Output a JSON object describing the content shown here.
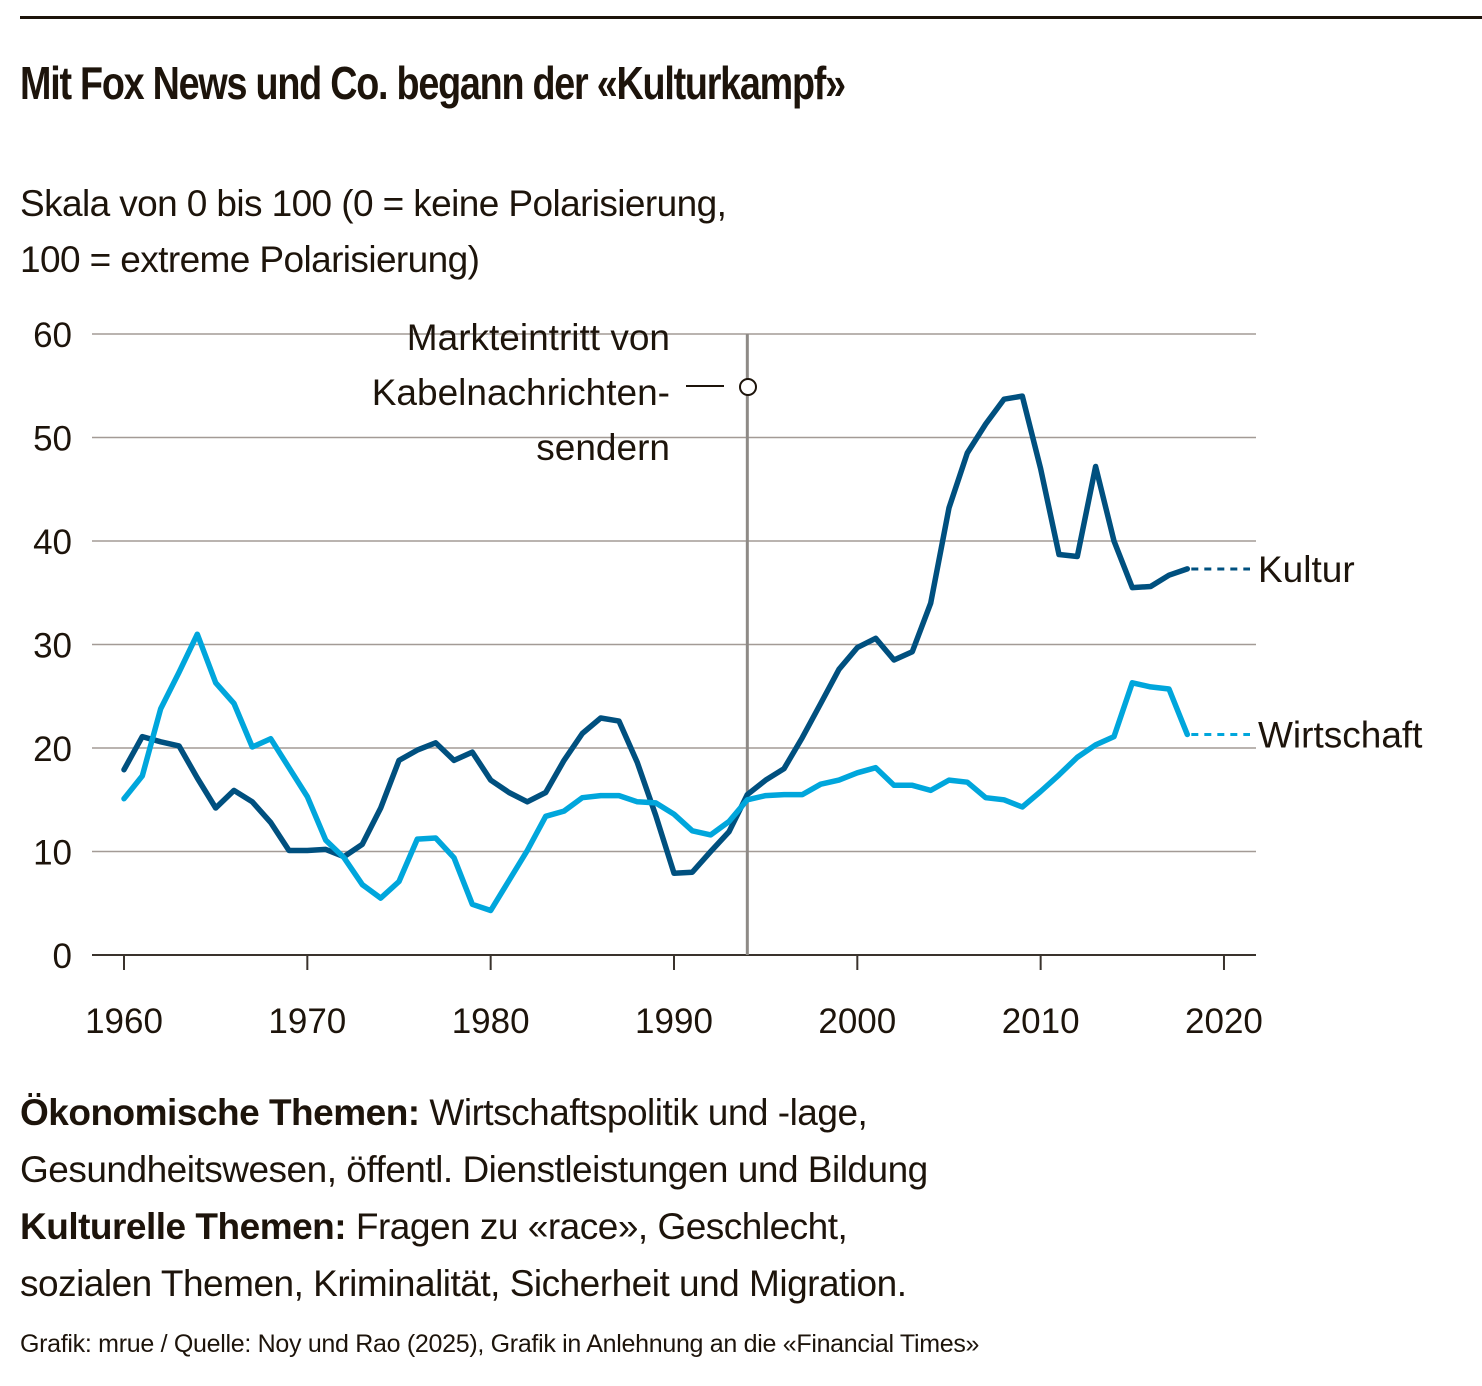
{
  "header": {
    "title": "Mit Fox News und Co. begann der «Kulturkampf»",
    "subtitle_line1": "Skala von 0 bis 100 (0 = keine Polarisierung,",
    "subtitle_line2": "100 = extreme Polarisierung)"
  },
  "annotation": {
    "lines": [
      "Markteintritt von",
      "Kabelnachrichten-",
      "sendern"
    ],
    "year": 1994
  },
  "notes": {
    "econ_label": "Ökonomische Themen:",
    "econ_text": " Wirtschaftspolitik und -lage,",
    "econ_text2": "Gesundheitswesen, öffentl. Dienstleistungen und Bildung",
    "cult_label": "Kulturelle Themen:",
    "cult_text": " Fragen zu «race», Geschlecht,",
    "cult_text2": "sozialen Themen, Kriminalität, Sicherheit und Migration."
  },
  "source": "Grafik: mrue / Quelle: Noy und Rao (2025), Grafik in Anlehnung an die «Financial Times»",
  "colors": {
    "kultur": "#00507f",
    "wirtschaft": "#00a6dc",
    "grid": "#a39b96",
    "text": "#1d140b",
    "annotation_line": "#8e8a86"
  },
  "chart_data": {
    "type": "line",
    "title": "Mit Fox News und Co. begann der «Kulturkampf»",
    "subtitle": "Skala von 0 bis 100 (0 = keine Polarisierung, 100 = extreme Polarisierung)",
    "xlabel": "",
    "ylabel": "",
    "xlim": [
      1958,
      2022
    ],
    "ylim": [
      0,
      60
    ],
    "x_ticks": [
      1960,
      1970,
      1980,
      1990,
      2000,
      2010,
      2020
    ],
    "x_tick_labels": [
      "1960",
      "1970",
      "1980",
      "1990",
      "2000",
      "2010",
      "2020"
    ],
    "y_ticks": [
      0,
      10,
      20,
      30,
      40,
      50,
      60
    ],
    "y_tick_labels": [
      "0",
      "10",
      "20",
      "30",
      "40",
      "50",
      "60"
    ],
    "grid": true,
    "legend": "inline-right",
    "x": [
      1960,
      1961,
      1962,
      1963,
      1964,
      1965,
      1966,
      1967,
      1968,
      1969,
      1970,
      1971,
      1972,
      1973,
      1974,
      1975,
      1976,
      1977,
      1978,
      1979,
      1980,
      1981,
      1982,
      1983,
      1984,
      1985,
      1986,
      1987,
      1988,
      1989,
      1990,
      1991,
      1992,
      1993,
      1994,
      1995,
      1996,
      1997,
      1998,
      1999,
      2000,
      2001,
      2002,
      2003,
      2004,
      2005,
      2006,
      2007,
      2008,
      2009,
      2010,
      2011,
      2012,
      2013,
      2014,
      2015,
      2016,
      2017,
      2018
    ],
    "series": [
      {
        "name": "Kultur",
        "color": "#00507f",
        "values": [
          17.9,
          21.1,
          20.6,
          20.2,
          17.1,
          14.2,
          15.9,
          14.8,
          12.8,
          10.1,
          10.1,
          10.2,
          9.5,
          10.7,
          14.2,
          18.8,
          19.8,
          20.5,
          18.8,
          19.6,
          16.9,
          15.7,
          14.8,
          15.7,
          18.8,
          21.4,
          22.9,
          22.6,
          18.6,
          13.5,
          7.9,
          8.0,
          10.0,
          11.9,
          15.5,
          16.9,
          18.0,
          21.0,
          24.3,
          27.6,
          29.7,
          30.6,
          28.5,
          29.3,
          34.0,
          43.2,
          48.5,
          51.3,
          53.7,
          54.0,
          47.0,
          38.7,
          38.5,
          47.2,
          40.0,
          35.5,
          35.6,
          36.7,
          37.3
        ]
      },
      {
        "name": "Wirtschaft",
        "color": "#00a6dc",
        "values": [
          15.1,
          17.3,
          23.8,
          27.3,
          31.0,
          26.3,
          24.3,
          20.1,
          20.9,
          18.1,
          15.3,
          11.1,
          9.4,
          6.8,
          5.5,
          7.1,
          11.2,
          11.3,
          9.4,
          4.9,
          4.3,
          7.2,
          10.1,
          13.4,
          13.9,
          15.2,
          15.4,
          15.4,
          14.8,
          14.7,
          13.6,
          12.0,
          11.6,
          12.9,
          15.0,
          15.4,
          15.5,
          15.5,
          16.5,
          16.9,
          17.6,
          18.1,
          16.4,
          16.4,
          15.9,
          16.9,
          16.7,
          15.2,
          15.0,
          14.3,
          15.8,
          17.4,
          19.1,
          20.3,
          21.1,
          26.3,
          25.9,
          25.7,
          21.3
        ]
      }
    ],
    "annotations": [
      {
        "type": "vertical-line",
        "x": 1994,
        "text": "Markteintritt von Kabelnachrichten-sendern"
      }
    ]
  }
}
